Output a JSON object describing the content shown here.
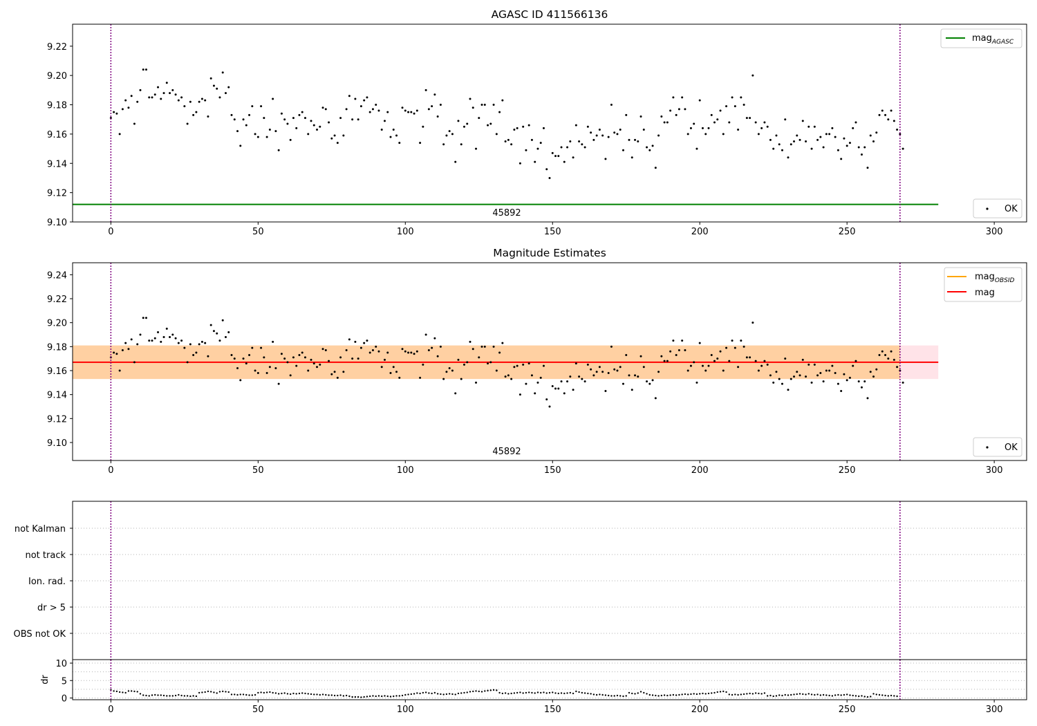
{
  "chart_data": [
    {
      "type": "scatter",
      "title": "AGASC ID 411566136",
      "xlim": [
        -13,
        311
      ],
      "ylim": [
        9.1,
        9.235
      ],
      "xticks": [
        "0",
        "50",
        "100",
        "150",
        "200",
        "250",
        "300"
      ],
      "yticks": [
        "9.10",
        "9.12",
        "9.14",
        "9.16",
        "9.18",
        "9.20",
        "9.22"
      ],
      "series": [
        {
          "name": "OK",
          "marker": "point",
          "color": "#000000",
          "y": "shared_points.y"
        },
        {
          "name": "mag_AGASC",
          "type": "hline",
          "value": 9.112,
          "x_range": [
            -13,
            281
          ],
          "color": "#008000"
        }
      ],
      "vlines": [
        0,
        268
      ],
      "vline_color": "#800080",
      "annotations": [
        {
          "text": "45892",
          "x": 134
        }
      ],
      "legend": {
        "upper": "top-right",
        "lower": "bottom-right"
      }
    },
    {
      "type": "scatter",
      "title": "Magnitude Estimates",
      "xlim": [
        -13,
        311
      ],
      "ylim": [
        9.085,
        9.25
      ],
      "xticks": [
        "0",
        "50",
        "100",
        "150",
        "200",
        "250",
        "300"
      ],
      "yticks": [
        "9.10",
        "9.12",
        "9.14",
        "9.16",
        "9.18",
        "9.20",
        "9.22",
        "9.24"
      ],
      "series": [
        {
          "name": "OK",
          "marker": "point",
          "color": "#000000",
          "y": "shared_points.y"
        },
        {
          "name": "mag_OBSID",
          "type": "line",
          "color": "#ffa500"
        },
        {
          "name": "mag",
          "type": "hline",
          "value": 9.167,
          "x_range": [
            -13,
            281
          ],
          "color": "#ff0000"
        }
      ],
      "bands": [
        {
          "color": "#ffc0cb",
          "y0": 9.153,
          "y1": 9.181,
          "x_range": [
            -13,
            281
          ]
        },
        {
          "color": "#ffa500",
          "y0": 9.153,
          "y1": 9.181,
          "x_range": [
            -13,
            268
          ]
        }
      ],
      "vlines": [
        0,
        268
      ],
      "vline_color": "#800080",
      "annotations": [
        {
          "text": "45892",
          "x": 134
        }
      ],
      "legend": {
        "upper": "top-right",
        "lower": "bottom-right"
      }
    },
    {
      "type": "scatter",
      "title": "",
      "category_labels": [
        "not Kalman",
        "not track",
        "Ion. rad.",
        "dr > 5",
        "OBS not OK"
      ],
      "xlim": [
        -13,
        311
      ],
      "vlines": [
        0,
        268
      ]
    },
    {
      "type": "scatter",
      "ylabel": "dr",
      "xlim": [
        -13,
        311
      ],
      "ylim": [
        -0.5,
        11
      ],
      "xticks": [
        "0",
        "50",
        "100",
        "150",
        "200",
        "250",
        "300"
      ],
      "yticks": [
        "0",
        "5",
        "10"
      ],
      "grid": true,
      "vlines": [
        0,
        268
      ],
      "y": "shared_points.dr"
    }
  ],
  "shared_points": {
    "y": [
      9.171,
      9.175,
      9.174,
      9.16,
      9.177,
      9.183,
      9.178,
      9.186,
      9.167,
      9.182,
      9.19,
      9.204,
      9.204,
      9.185,
      9.185,
      9.187,
      9.192,
      9.184,
      9.188,
      9.195,
      9.188,
      9.19,
      9.187,
      9.183,
      9.185,
      9.179,
      9.167,
      9.182,
      9.173,
      9.175,
      9.182,
      9.184,
      9.183,
      9.172,
      9.198,
      9.193,
      9.191,
      9.185,
      9.202,
      9.188,
      9.192,
      9.173,
      9.17,
      9.162,
      9.152,
      9.17,
      9.166,
      9.173,
      9.179,
      9.16,
      9.158,
      9.179,
      9.171,
      9.158,
      9.163,
      9.184,
      9.162,
      9.149,
      9.174,
      9.17,
      9.167,
      9.156,
      9.171,
      9.164,
      9.173,
      9.175,
      9.171,
      9.16,
      9.169,
      9.166,
      9.163,
      9.165,
      9.178,
      9.177,
      9.168,
      9.157,
      9.159,
      9.154,
      9.171,
      9.159,
      9.177,
      9.186,
      9.17,
      9.184,
      9.17,
      9.179,
      9.183,
      9.185,
      9.175,
      9.177,
      9.18,
      9.176,
      9.163,
      9.169,
      9.175,
      9.158,
      9.163,
      9.159,
      9.154,
      9.178,
      9.176,
      9.175,
      9.175,
      9.174,
      9.176,
      9.154,
      9.165,
      9.19,
      9.177,
      9.179,
      9.187,
      9.172,
      9.18,
      9.153,
      9.159,
      9.162,
      9.16,
      9.141,
      9.169,
      9.153,
      9.165,
      9.167,
      9.184,
      9.178,
      9.15,
      9.171,
      9.18,
      9.18,
      9.166,
      9.167,
      9.18,
      9.16,
      9.175,
      9.183,
      9.155,
      9.156,
      9.153,
      9.163,
      9.164,
      9.14,
      9.165,
      9.149,
      9.166,
      9.156,
      9.141,
      9.15,
      9.154,
      9.164,
      9.136,
      9.13,
      9.147,
      9.145,
      9.145,
      9.151,
      9.141,
      9.151,
      9.155,
      9.144,
      9.166,
      9.155,
      9.153,
      9.151,
      9.165,
      9.161,
      9.156,
      9.159,
      9.163,
      9.159,
      9.143,
      9.158,
      9.18,
      9.161,
      9.16,
      9.163,
      9.149,
      9.173,
      9.156,
      9.144,
      9.156,
      9.155,
      9.172,
      9.163,
      9.151,
      9.149,
      9.152,
      9.137,
      9.159,
      9.172,
      9.168,
      9.168,
      9.176,
      9.185,
      9.173,
      9.177,
      9.185,
      9.177,
      9.16,
      9.164,
      9.167,
      9.15,
      9.183,
      9.164,
      9.16,
      9.164,
      9.173,
      9.168,
      9.17,
      9.176,
      9.16,
      9.179,
      9.168,
      9.185,
      9.179,
      9.163,
      9.185,
      9.18,
      9.171,
      9.171,
      9.2,
      9.168,
      9.16,
      9.164,
      9.168,
      9.165,
      9.156,
      9.15,
      9.159,
      9.153,
      9.149,
      9.17,
      9.144,
      9.153,
      9.155,
      9.159,
      9.156,
      9.169,
      9.155,
      9.165,
      9.15,
      9.165,
      9.156,
      9.158,
      9.151,
      9.16,
      9.16,
      9.164,
      9.158,
      9.149,
      9.143,
      9.157,
      9.152,
      9.154,
      9.164,
      9.168,
      9.151,
      9.146,
      9.151,
      9.137,
      9.159,
      9.155,
      9.161,
      9.173,
      9.176,
      9.173,
      9.17,
      9.176,
      9.169,
      9.163,
      9.16,
      9.15
    ],
    "dr": [
      2.3,
      2.0,
      1.9,
      1.7,
      1.6,
      1.5,
      2.0,
      2.0,
      1.9,
      1.8,
      1.2,
      0.8,
      0.7,
      0.6,
      0.8,
      0.9,
      0.8,
      0.8,
      0.7,
      0.6,
      0.6,
      0.6,
      0.7,
      0.9,
      0.7,
      0.6,
      0.6,
      0.5,
      0.6,
      0.5,
      1.5,
      1.6,
      1.7,
      1.9,
      1.8,
      1.6,
      1.4,
      1.8,
      1.9,
      1.8,
      1.7,
      1.0,
      1.0,
      0.9,
      1.0,
      1.0,
      0.9,
      0.8,
      0.8,
      0.9,
      1.5,
      1.6,
      1.5,
      1.6,
      1.7,
      1.5,
      1.4,
      1.2,
      1.3,
      1.4,
      1.2,
      1.1,
      1.3,
      1.2,
      1.3,
      1.4,
      1.3,
      1.2,
      1.1,
      1.0,
      1.0,
      0.9,
      1.0,
      0.9,
      0.8,
      0.8,
      0.7,
      0.7,
      0.8,
      0.6,
      0.7,
      0.5,
      0.3,
      0.3,
      0.3,
      0.2,
      0.3,
      0.4,
      0.5,
      0.6,
      0.5,
      0.6,
      0.5,
      0.6,
      0.5,
      0.4,
      0.5,
      0.6,
      0.6,
      0.7,
      0.9,
      1.0,
      1.1,
      1.2,
      1.4,
      1.3,
      1.5,
      1.6,
      1.4,
      1.3,
      1.5,
      1.2,
      1.1,
      1.0,
      1.1,
      1.2,
      1.1,
      1.0,
      1.3,
      1.4,
      1.5,
      1.6,
      1.8,
      1.9,
      2.0,
      1.9,
      1.8,
      2.0,
      2.1,
      2.2,
      2.3,
      2.2,
      1.5,
      1.3,
      1.4,
      1.2,
      1.3,
      1.4,
      1.5,
      1.6,
      1.4,
      1.5,
      1.6,
      1.5,
      1.4,
      1.6,
      1.5,
      1.6,
      1.4,
      1.5,
      1.6,
      1.4,
      1.3,
      1.4,
      1.3,
      1.4,
      1.5,
      1.3,
      1.9,
      1.7,
      1.5,
      1.4,
      1.3,
      1.2,
      1.0,
      0.9,
      1.0,
      0.9,
      0.8,
      0.7,
      0.6,
      0.6,
      0.7,
      0.6,
      0.5,
      0.6,
      1.5,
      1.3,
      1.2,
      1.4,
      1.8,
      1.5,
      1.2,
      0.9,
      0.8,
      0.7,
      0.6,
      0.7,
      0.8,
      0.7,
      0.8,
      0.9,
      0.8,
      0.9,
      1.0,
      1.1,
      1.0,
      1.1,
      1.2,
      1.1,
      1.2,
      1.3,
      1.2,
      1.3,
      1.4,
      1.5,
      1.7,
      1.8,
      1.9,
      1.7,
      1.0,
      0.9,
      1.0,
      0.9,
      1.0,
      1.1,
      1.2,
      1.3,
      1.2,
      1.4,
      1.3,
      1.2,
      1.4,
      0.6,
      0.7,
      0.5,
      0.6,
      0.8,
      0.7,
      0.9,
      0.8,
      0.9,
      1.0,
      1.1,
      1.2,
      1.1,
      1.0,
      1.2,
      1.0,
      0.9,
      1.0,
      0.8,
      0.9,
      0.8,
      0.7,
      0.6,
      0.8,
      0.9,
      0.8,
      0.9,
      1.0,
      0.8,
      0.7,
      0.6,
      0.5,
      0.6,
      0.4,
      0.3,
      0.4,
      1.2,
      1.0,
      0.9,
      0.8,
      0.7,
      0.6,
      0.7,
      0.6,
      0.5
    ]
  }
}
